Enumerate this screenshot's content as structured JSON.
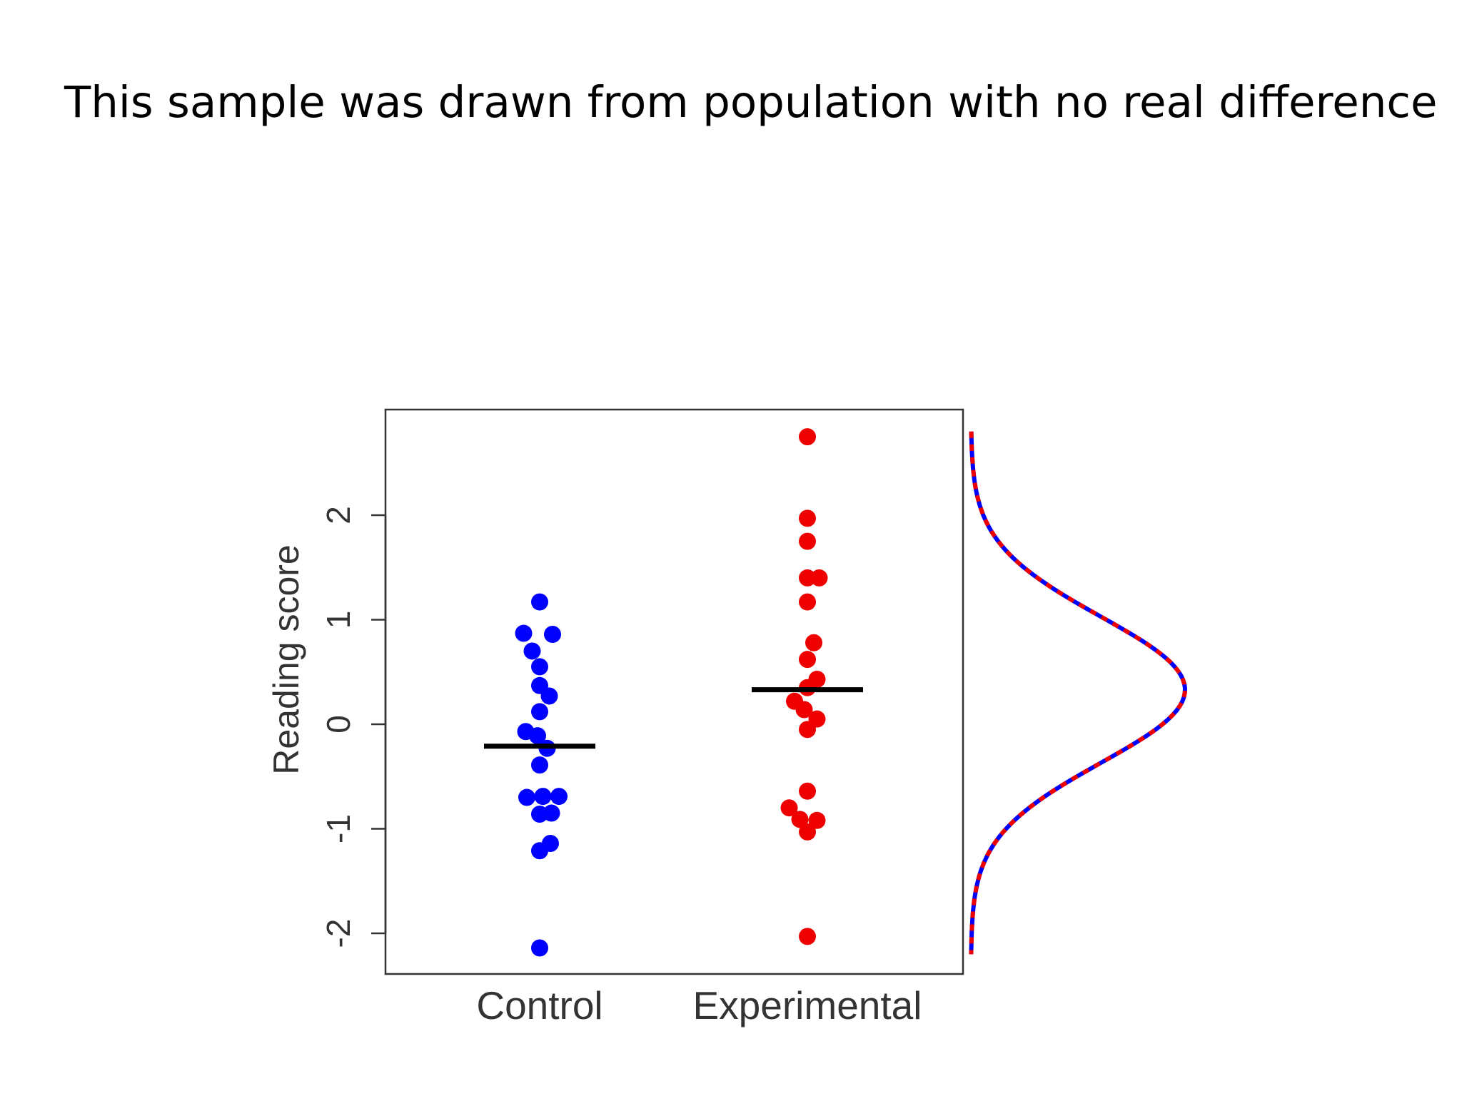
{
  "slide": {
    "title": "This sample was drawn from population with no real difference"
  },
  "chart_data": {
    "type": "scatter",
    "ylabel": "Reading score",
    "ylim": [
      -2.35,
      3.05
    ],
    "yticks": [
      -2,
      -1,
      0,
      1,
      2
    ],
    "ytick_labels": [
      "-2",
      "-1",
      "0",
      "1",
      "2"
    ],
    "categories": [
      "Control",
      "Experimental"
    ],
    "series": [
      {
        "color": "#0000ff",
        "mean": -0.21,
        "points": [
          {
            "offset": 0.0,
            "y": 1.17
          },
          {
            "offset": -0.15,
            "y": 0.87
          },
          {
            "offset": 0.12,
            "y": 0.86
          },
          {
            "offset": -0.07,
            "y": 0.7
          },
          {
            "offset": 0.0,
            "y": 0.55
          },
          {
            "offset": 0.0,
            "y": 0.37
          },
          {
            "offset": 0.09,
            "y": 0.27
          },
          {
            "offset": 0.0,
            "y": 0.12
          },
          {
            "offset": -0.13,
            "y": -0.07
          },
          {
            "offset": -0.02,
            "y": -0.11
          },
          {
            "offset": 0.07,
            "y": -0.23
          },
          {
            "offset": 0.0,
            "y": -0.39
          },
          {
            "offset": -0.12,
            "y": -0.7
          },
          {
            "offset": 0.03,
            "y": -0.69
          },
          {
            "offset": 0.18,
            "y": -0.69
          },
          {
            "offset": 0.0,
            "y": -0.86
          },
          {
            "offset": 0.11,
            "y": -0.85
          },
          {
            "offset": 0.1,
            "y": -1.14
          },
          {
            "offset": 0.0,
            "y": -1.21
          },
          {
            "offset": 0.0,
            "y": -2.14
          }
        ]
      },
      {
        "color": "#ee0000",
        "mean": 0.33,
        "points": [
          {
            "offset": 0.0,
            "y": 2.75
          },
          {
            "offset": 0.0,
            "y": 1.97
          },
          {
            "offset": 0.0,
            "y": 1.75
          },
          {
            "offset": 0.0,
            "y": 1.4
          },
          {
            "offset": 0.11,
            "y": 1.4
          },
          {
            "offset": 0.0,
            "y": 1.17
          },
          {
            "offset": 0.06,
            "y": 0.78
          },
          {
            "offset": 0.0,
            "y": 0.62
          },
          {
            "offset": 0.09,
            "y": 0.43
          },
          {
            "offset": 0.0,
            "y": 0.35
          },
          {
            "offset": -0.12,
            "y": 0.22
          },
          {
            "offset": -0.03,
            "y": 0.14
          },
          {
            "offset": 0.09,
            "y": 0.05
          },
          {
            "offset": 0.0,
            "y": -0.05
          },
          {
            "offset": 0.0,
            "y": -0.64
          },
          {
            "offset": -0.17,
            "y": -0.8
          },
          {
            "offset": -0.07,
            "y": -0.91
          },
          {
            "offset": 0.09,
            "y": -0.92
          },
          {
            "offset": 0.0,
            "y": -1.03
          },
          {
            "offset": 0.0,
            "y": -2.03
          }
        ]
      }
    ],
    "density_curve": {
      "mean": 0.33,
      "sd": 0.7,
      "colors": [
        "#0000ff",
        "#ee0000"
      ]
    }
  }
}
